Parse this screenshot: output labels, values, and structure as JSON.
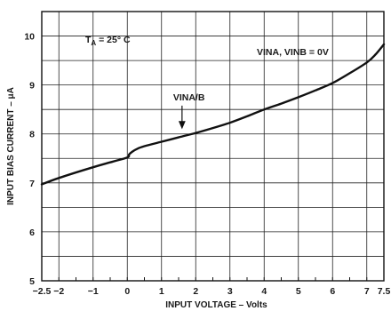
{
  "chart_data": {
    "type": "line",
    "title": "",
    "xlabel": "INPUT VOLTAGE – Volts",
    "ylabel": "INPUT BIAS CURRENT – μA",
    "xlim": [
      -2.5,
      7.5
    ],
    "ylim": [
      5,
      10.5
    ],
    "grid": true,
    "x_ticks": [
      -2.5,
      -2,
      -1,
      0,
      1,
      2,
      3,
      4,
      5,
      6,
      7,
      7.5
    ],
    "x_tick_labels": [
      "−2.5",
      "−2",
      "−1",
      "0",
      "1",
      "2",
      "3",
      "4",
      "5",
      "6",
      "7",
      "7.5"
    ],
    "y_ticks": [
      5,
      6,
      7,
      8,
      9,
      10
    ],
    "y_tick_labels": [
      "5",
      "6",
      "7",
      "8",
      "9",
      "10"
    ],
    "series": [
      {
        "name": "",
        "color": "#111111",
        "x": [
          -2.5,
          -2,
          -1,
          -0.5,
          0,
          0.05,
          0.15,
          0.3,
          0.5,
          1,
          1.5,
          2,
          2.5,
          3,
          3.5,
          4,
          4.5,
          5,
          5.5,
          6,
          6.5,
          7,
          7.25,
          7.5
        ],
        "y": [
          6.97,
          7.1,
          7.32,
          7.42,
          7.52,
          7.58,
          7.64,
          7.7,
          7.75,
          7.84,
          7.93,
          8.02,
          8.12,
          8.23,
          8.36,
          8.5,
          8.62,
          8.75,
          8.89,
          9.04,
          9.24,
          9.46,
          9.62,
          9.83
        ]
      }
    ],
    "annotations": {
      "temperature_prefix": "T",
      "temperature_sub": "A",
      "temperature_value": " = 25° C",
      "condition": "VINA, VINB = 0V",
      "marker_label": "VINA/B",
      "marker_x": 1.6,
      "marker_y": 7.98
    }
  }
}
